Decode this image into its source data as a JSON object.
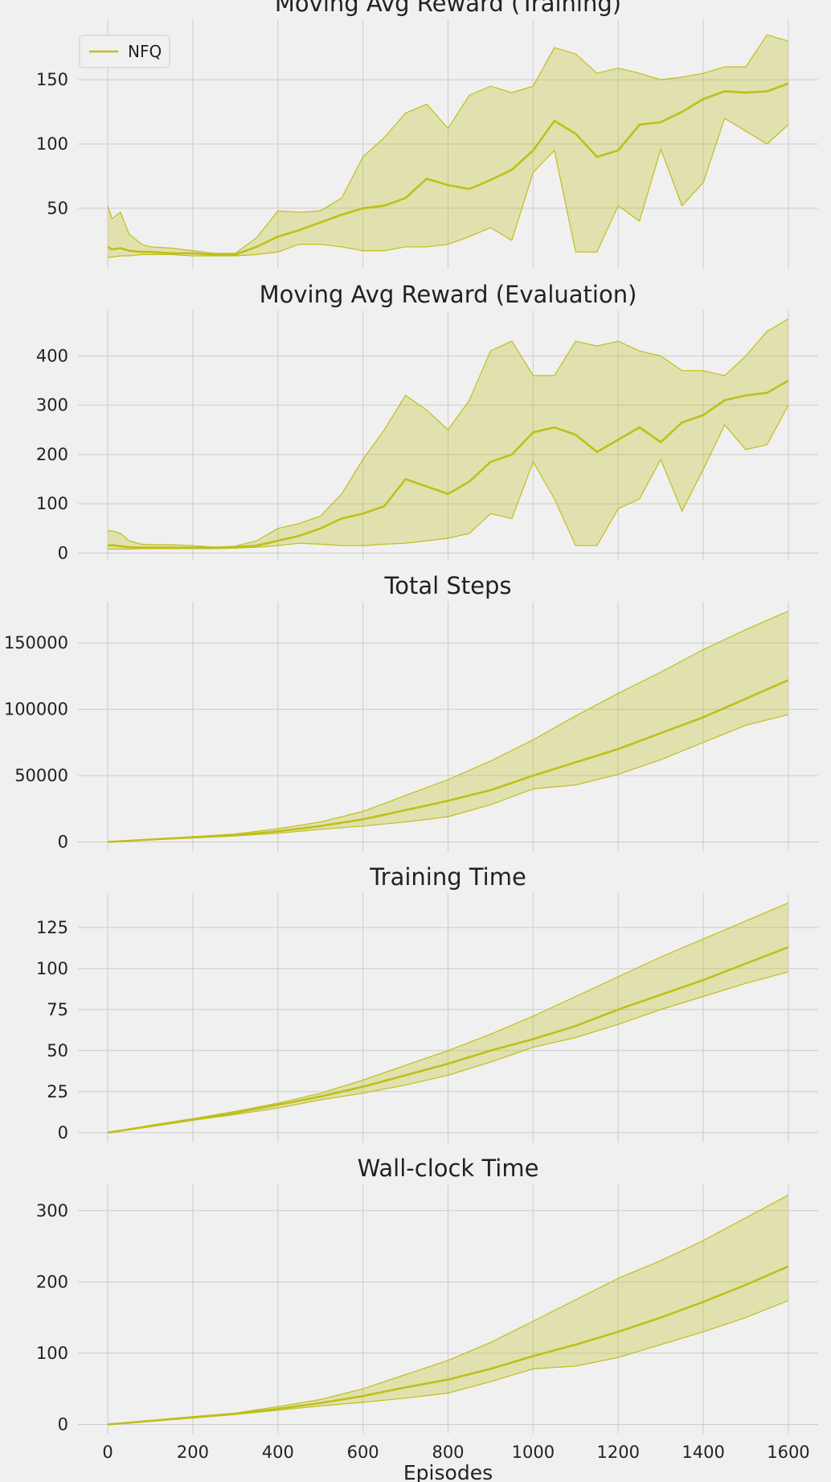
{
  "chart_data": [
    {
      "type": "line",
      "title": "Moving Avg Reward (Training)",
      "xlim": [
        -70,
        1670
      ],
      "ylim": [
        3,
        197
      ],
      "xticks": [],
      "yticks": [
        50,
        100,
        150
      ],
      "grid": true,
      "legend": {
        "placement": "top-left",
        "entries": [
          "NFQ"
        ]
      },
      "series": [
        {
          "name": "NFQ",
          "color": "#bfbf1a",
          "x": [
            0,
            10,
            30,
            50,
            80,
            100,
            150,
            200,
            250,
            300,
            350,
            400,
            450,
            500,
            550,
            600,
            650,
            700,
            750,
            800,
            850,
            900,
            950,
            1000,
            1050,
            1100,
            1150,
            1200,
            1250,
            1300,
            1350,
            1400,
            1450,
            1500,
            1550,
            1600
          ],
          "mean": [
            20,
            18,
            19,
            17,
            16,
            16,
            15,
            15,
            14,
            14,
            20,
            28,
            33,
            39,
            45,
            50,
            52,
            58,
            73,
            68,
            65,
            72,
            80,
            95,
            118,
            108,
            90,
            95,
            115,
            117,
            125,
            135,
            141,
            140,
            141,
            147
          ],
          "upper": [
            52,
            42,
            47,
            30,
            22,
            20,
            19,
            17,
            15,
            15,
            27,
            48,
            47,
            48,
            58,
            90,
            105,
            124,
            131,
            112,
            138,
            145,
            140,
            145,
            175,
            170,
            155,
            159,
            155,
            150,
            152,
            155,
            160,
            160,
            185,
            180
          ],
          "lower": [
            12,
            12,
            13,
            13,
            14,
            14,
            14,
            13,
            13,
            13,
            14,
            16,
            22,
            22,
            20,
            17,
            17,
            20,
            20,
            22,
            28,
            35,
            25,
            78,
            95,
            16,
            16,
            52,
            40,
            96,
            52,
            70,
            120,
            110,
            100,
            115
          ]
        }
      ]
    },
    {
      "type": "line",
      "title": "Moving Avg Reward (Evaluation)",
      "xlim": [
        -70,
        1670
      ],
      "ylim": [
        -14,
        492
      ],
      "xticks": [],
      "yticks": [
        0,
        100,
        200,
        300,
        400
      ],
      "grid": true,
      "series": [
        {
          "name": "NFQ",
          "color": "#bfbf1a",
          "x": [
            0,
            10,
            30,
            50,
            80,
            100,
            150,
            200,
            250,
            300,
            350,
            400,
            450,
            500,
            550,
            600,
            650,
            700,
            750,
            800,
            850,
            900,
            950,
            1000,
            1050,
            1100,
            1150,
            1200,
            1250,
            1300,
            1350,
            1400,
            1450,
            1500,
            1550,
            1600
          ],
          "mean": [
            15,
            16,
            14,
            12,
            11,
            11,
            11,
            11,
            11,
            12,
            15,
            25,
            35,
            50,
            70,
            80,
            95,
            150,
            135,
            120,
            145,
            185,
            200,
            245,
            255,
            240,
            205,
            230,
            255,
            225,
            265,
            280,
            310,
            320,
            325,
            350
          ],
          "upper": [
            45,
            45,
            40,
            25,
            18,
            17,
            17,
            15,
            12,
            14,
            25,
            50,
            60,
            75,
            120,
            190,
            250,
            320,
            290,
            250,
            310,
            410,
            430,
            360,
            360,
            430,
            420,
            430,
            410,
            400,
            370,
            370,
            360,
            400,
            450,
            475
          ],
          "lower": [
            8,
            8,
            8,
            8,
            9,
            9,
            9,
            9,
            9,
            10,
            12,
            15,
            20,
            18,
            15,
            15,
            18,
            20,
            25,
            30,
            40,
            80,
            70,
            185,
            110,
            15,
            15,
            90,
            110,
            190,
            85,
            170,
            260,
            210,
            220,
            300
          ]
        }
      ]
    },
    {
      "type": "line",
      "title": "Total Steps",
      "xlim": [
        -70,
        1670
      ],
      "ylim": [
        -7000,
        181000
      ],
      "xticks": [],
      "yticks": [
        0,
        50000,
        100000,
        150000
      ],
      "grid": true,
      "series": [
        {
          "name": "NFQ",
          "color": "#bfbf1a",
          "x": [
            0,
            100,
            200,
            300,
            400,
            500,
            600,
            700,
            800,
            900,
            1000,
            1100,
            1200,
            1300,
            1400,
            1500,
            1600
          ],
          "mean": [
            0,
            1800,
            3500,
            5000,
            8000,
            12000,
            17000,
            24000,
            31000,
            39000,
            50000,
            60000,
            70000,
            82000,
            94000,
            108000,
            122000
          ],
          "upper": [
            0,
            2000,
            4000,
            6000,
            10000,
            15000,
            23000,
            35000,
            47000,
            61000,
            77000,
            95000,
            112000,
            128000,
            145000,
            160000,
            174000
          ],
          "lower": [
            0,
            1600,
            3000,
            4500,
            6500,
            9500,
            12000,
            15000,
            19000,
            28000,
            40000,
            43000,
            51000,
            62000,
            75000,
            88000,
            96000
          ]
        }
      ]
    },
    {
      "type": "line",
      "title": "Training Time",
      "xlim": [
        -70,
        1670
      ],
      "ylim": [
        -6,
        146
      ],
      "xticks": [],
      "yticks": [
        0,
        25,
        50,
        75,
        100,
        125
      ],
      "grid": true,
      "series": [
        {
          "name": "NFQ",
          "color": "#bfbf1a",
          "x": [
            0,
            100,
            200,
            300,
            400,
            500,
            600,
            700,
            800,
            900,
            1000,
            1100,
            1200,
            1300,
            1400,
            1500,
            1600
          ],
          "mean": [
            0,
            4,
            8,
            12,
            17,
            22,
            28,
            35,
            42,
            50,
            57,
            65,
            75,
            84,
            93,
            103,
            113
          ],
          "upper": [
            0,
            4.5,
            8.5,
            13,
            18,
            24,
            32,
            41,
            50,
            60,
            71,
            83,
            95,
            107,
            118,
            129,
            140
          ],
          "lower": [
            0,
            3.5,
            7.5,
            11,
            15,
            20,
            24,
            29,
            35,
            43,
            52,
            58,
            66,
            75,
            83,
            91,
            98
          ]
        }
      ]
    },
    {
      "type": "line",
      "title": "Wall-clock Time",
      "xlim": [
        -70,
        1670
      ],
      "ylim": [
        -13,
        337
      ],
      "xlabel": "Episodes",
      "xticks": [
        0,
        200,
        400,
        600,
        800,
        1000,
        1200,
        1400,
        1600
      ],
      "yticks": [
        0,
        100,
        200,
        300
      ],
      "grid": true,
      "series": [
        {
          "name": "NFQ",
          "color": "#bfbf1a",
          "x": [
            0,
            100,
            200,
            300,
            400,
            500,
            600,
            700,
            800,
            900,
            1000,
            1100,
            1200,
            1300,
            1400,
            1500,
            1600
          ],
          "mean": [
            0,
            5,
            10,
            15,
            22,
            30,
            40,
            52,
            63,
            78,
            96,
            112,
            130,
            150,
            172,
            196,
            222
          ],
          "upper": [
            0,
            5.5,
            11,
            16,
            25,
            35,
            50,
            70,
            90,
            115,
            145,
            175,
            205,
            230,
            258,
            290,
            322
          ],
          "lower": [
            0,
            4.5,
            9,
            14,
            20,
            26,
            31,
            37,
            44,
            60,
            78,
            82,
            94,
            112,
            130,
            150,
            174
          ]
        }
      ]
    }
  ]
}
